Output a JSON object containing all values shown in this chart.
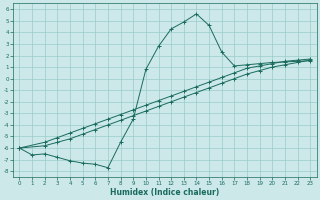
{
  "xlabel": "Humidex (Indice chaleur)",
  "background_color": "#cce8e8",
  "grid_color": "#99cccc",
  "line_color": "#1a6b5e",
  "xlim": [
    -0.5,
    23.5
  ],
  "ylim": [
    -8.5,
    6.5
  ],
  "xticks": [
    0,
    1,
    2,
    3,
    4,
    5,
    6,
    7,
    8,
    9,
    10,
    11,
    12,
    13,
    14,
    15,
    16,
    17,
    18,
    19,
    20,
    21,
    22,
    23
  ],
  "yticks": [
    -8,
    -7,
    -6,
    -5,
    -4,
    -3,
    -2,
    -1,
    0,
    1,
    2,
    3,
    4,
    5,
    6
  ],
  "line1_x": [
    0,
    1,
    2,
    3,
    4,
    5,
    6,
    7,
    8,
    9,
    10,
    11,
    12,
    13,
    14,
    15,
    16,
    17,
    18,
    19,
    20,
    21,
    22,
    23
  ],
  "line1_y": [
    -6.0,
    -6.6,
    -6.5,
    -6.8,
    -7.1,
    -7.3,
    -7.4,
    -7.7,
    -5.5,
    -3.5,
    0.8,
    2.8,
    4.3,
    4.9,
    5.6,
    4.6,
    2.3,
    1.1,
    1.2,
    1.3,
    1.4,
    1.45,
    1.5,
    1.55
  ],
  "line2_x": [
    0,
    2,
    3,
    4,
    5,
    6,
    7,
    8,
    9,
    10,
    11,
    12,
    13,
    14,
    15,
    16,
    17,
    18,
    19,
    20,
    21,
    22,
    23
  ],
  "line2_y": [
    -6.0,
    -5.8,
    -5.5,
    -5.2,
    -4.8,
    -4.4,
    -4.0,
    -3.6,
    -3.2,
    -2.8,
    -2.4,
    -2.0,
    -1.6,
    -1.2,
    -0.8,
    -0.4,
    0.0,
    0.4,
    0.7,
    1.0,
    1.2,
    1.4,
    1.6
  ],
  "line3_x": [
    0,
    2,
    3,
    4,
    5,
    6,
    7,
    8,
    9,
    10,
    11,
    12,
    13,
    14,
    15,
    16,
    17,
    18,
    19,
    20,
    21,
    22,
    23
  ],
  "line3_y": [
    -6.0,
    -5.5,
    -5.1,
    -4.7,
    -4.3,
    -3.9,
    -3.5,
    -3.1,
    -2.7,
    -2.3,
    -1.9,
    -1.5,
    -1.1,
    -0.7,
    -0.3,
    0.1,
    0.5,
    0.9,
    1.1,
    1.3,
    1.5,
    1.6,
    1.7
  ]
}
